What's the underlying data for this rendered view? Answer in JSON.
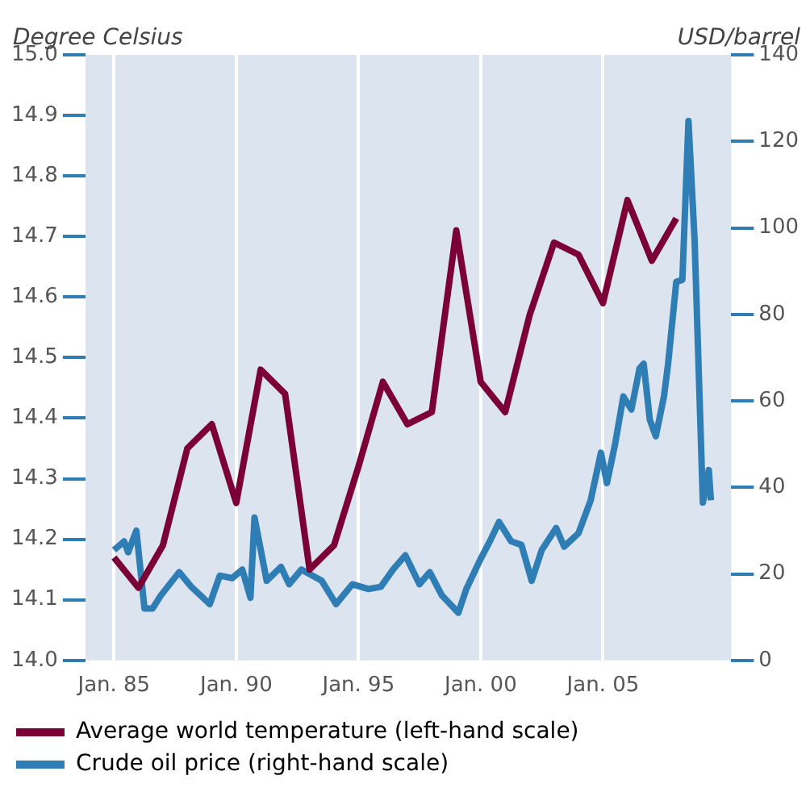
{
  "chart_data": {
    "type": "line",
    "ylabel": "Degree Celsius",
    "y2label": "USD/barrel",
    "xlim": [
      "1983-11",
      "2010-04"
    ],
    "xticks": [
      {
        "value": "1985-01",
        "label": "Jan. 85"
      },
      {
        "value": "1990-01",
        "label": "Jan. 90"
      },
      {
        "value": "1995-01",
        "label": "Jan. 95"
      },
      {
        "value": "2000-01",
        "label": "Jan. 00"
      },
      {
        "value": "2005-01",
        "label": "Jan. 05"
      }
    ],
    "ylim": [
      14.0,
      15.0
    ],
    "yticks": [
      {
        "value": 14.0,
        "label": "14.0"
      },
      {
        "value": 14.1,
        "label": "14.1"
      },
      {
        "value": 14.2,
        "label": "14.2"
      },
      {
        "value": 14.3,
        "label": "14.3"
      },
      {
        "value": 14.4,
        "label": "14.4"
      },
      {
        "value": 14.5,
        "label": "14.5"
      },
      {
        "value": 14.6,
        "label": "14.6"
      },
      {
        "value": 14.7,
        "label": "14.7"
      },
      {
        "value": 14.8,
        "label": "14.8"
      },
      {
        "value": 14.9,
        "label": "14.9"
      },
      {
        "value": 15.0,
        "label": "15.0"
      }
    ],
    "y2lim": [
      0,
      140
    ],
    "y2ticks": [
      0,
      20,
      40,
      60,
      80,
      100,
      120,
      140
    ],
    "grid": "x",
    "legend": "bottom",
    "marker": "none",
    "line_style": "solid",
    "series": [
      {
        "name": "Average world temperature (left-hand scale)",
        "color": "#7a0035",
        "x": [
          "1985",
          "1986",
          "1987",
          "1988",
          "1989",
          "1990",
          "1991",
          "1992",
          "1993",
          "1994",
          "1995",
          "1996",
          "1997",
          "1998",
          "1999",
          "2000",
          "2001",
          "2002",
          "2003",
          "2004",
          "2005",
          "2006",
          "2007",
          "2008"
        ],
        "values": [
          14.17,
          14.12,
          14.19,
          14.35,
          14.39,
          14.26,
          14.48,
          14.44,
          14.15,
          14.19,
          14.32,
          14.46,
          14.39,
          14.41,
          14.71,
          14.46,
          14.41,
          14.57,
          14.69,
          14.67,
          14.59,
          14.76,
          14.66,
          14.73
        ]
      },
      {
        "name": "Crude oil price (right-hand scale)",
        "color": "#2f7db5",
        "axis": "y2",
        "x": [
          "1985-01",
          "1985-06",
          "1985-08",
          "1985-12",
          "1986-04",
          "1986-08",
          "1986-12",
          "1987-09",
          "1988-03",
          "1988-12",
          "1989-05",
          "1989-11",
          "1990-04",
          "1990-08",
          "1990-10",
          "1991-04",
          "1991-11",
          "1992-03",
          "1992-09",
          "1993-07",
          "1994-02",
          "1994-10",
          "1995-06",
          "1995-12",
          "1996-06",
          "1996-12",
          "1997-07",
          "1997-12",
          "1998-06",
          "1999-02",
          "1999-06",
          "2000-01",
          "2000-06",
          "2000-10",
          "2001-04",
          "2001-09",
          "2002-02",
          "2002-07",
          "2003-02",
          "2003-06",
          "2004-01",
          "2004-07",
          "2004-12",
          "2005-03",
          "2005-07",
          "2005-11",
          "2006-03",
          "2006-07",
          "2006-09",
          "2006-12",
          "2007-03",
          "2007-07",
          "2007-09",
          "2008-01",
          "2008-04",
          "2008-07",
          "2008-10",
          "2009-02",
          "2009-05",
          "2009-06"
        ],
        "values": [
          25.5,
          27.5,
          25,
          30,
          12,
          12,
          15,
          20.4,
          17,
          13,
          19.6,
          19,
          21,
          14.5,
          33,
          18.4,
          21.6,
          17.6,
          21,
          18.4,
          13,
          17.6,
          16.5,
          17,
          21,
          24.3,
          17.6,
          20.4,
          15,
          11,
          16.5,
          23.5,
          28,
          32,
          27.5,
          26.7,
          18.4,
          25.5,
          30.6,
          26.3,
          29.4,
          37,
          48,
          41,
          50,
          61,
          58,
          67.5,
          68.6,
          55.7,
          51.8,
          61,
          68.6,
          87.5,
          88,
          124.7,
          97,
          36.5,
          44,
          37
        ]
      }
    ]
  }
}
